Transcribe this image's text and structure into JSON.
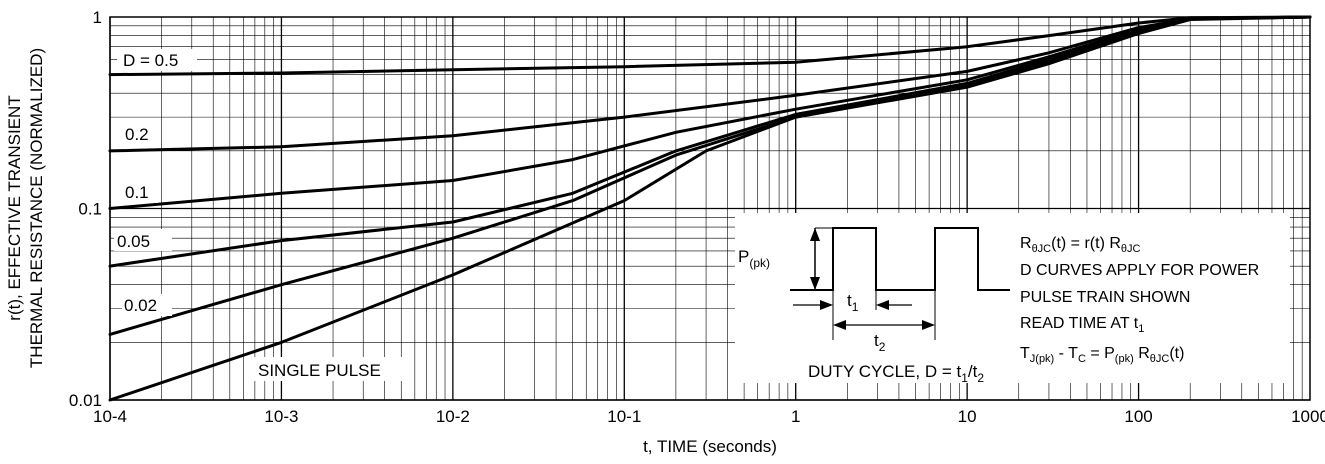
{
  "chart_data": {
    "type": "line",
    "xlabel": "t, TIME (seconds)",
    "ylabel_line1": "r(t), EFFECTIVE TRANSIENT",
    "ylabel_line2": "THERMAL RESISTANCE (NORMALIZED)",
    "x_scale": "log",
    "y_scale": "log",
    "xlim": [
      0.0001,
      1000
    ],
    "ylim": [
      0.01,
      1
    ],
    "grid": true,
    "x_ticks": [
      {
        "value": 0.0001,
        "label": "10-4"
      },
      {
        "value": 0.001,
        "label": "10-3"
      },
      {
        "value": 0.01,
        "label": "10-2"
      },
      {
        "value": 0.1,
        "label": "10-1"
      },
      {
        "value": 1,
        "label": "1"
      },
      {
        "value": 10,
        "label": "10"
      },
      {
        "value": 100,
        "label": "100"
      },
      {
        "value": 1000,
        "label": "1000"
      }
    ],
    "y_ticks": [
      {
        "value": 1,
        "label": "1"
      },
      {
        "value": 0.1,
        "label": "0.1"
      },
      {
        "value": 0.01,
        "label": "0.01"
      }
    ],
    "series": [
      {
        "name": "D = 0.5",
        "x": [
          0.0001,
          0.001,
          0.01,
          0.1,
          1,
          10,
          30,
          100,
          200,
          1000
        ],
        "y": [
          0.5,
          0.51,
          0.53,
          0.55,
          0.58,
          0.7,
          0.8,
          0.93,
          0.99,
          1.0
        ]
      },
      {
        "name": "0.2",
        "x": [
          0.0001,
          0.001,
          0.01,
          0.1,
          1,
          10,
          30,
          100,
          200,
          1000
        ],
        "y": [
          0.2,
          0.21,
          0.24,
          0.3,
          0.39,
          0.52,
          0.65,
          0.88,
          0.98,
          1.0
        ]
      },
      {
        "name": "0.1",
        "x": [
          0.0001,
          0.001,
          0.01,
          0.05,
          0.2,
          1,
          10,
          30,
          100,
          200,
          1000
        ],
        "y": [
          0.1,
          0.12,
          0.14,
          0.18,
          0.25,
          0.33,
          0.47,
          0.62,
          0.86,
          0.98,
          1.0
        ]
      },
      {
        "name": "0.05",
        "x": [
          0.0001,
          0.001,
          0.01,
          0.05,
          0.2,
          1,
          10,
          30,
          100,
          200,
          1000
        ],
        "y": [
          0.05,
          0.068,
          0.085,
          0.12,
          0.2,
          0.31,
          0.45,
          0.6,
          0.85,
          0.98,
          1.0
        ]
      },
      {
        "name": "0.02",
        "x": [
          0.0001,
          0.001,
          0.01,
          0.05,
          0.2,
          1,
          10,
          30,
          100,
          200,
          1000
        ],
        "y": [
          0.022,
          0.04,
          0.07,
          0.11,
          0.19,
          0.3,
          0.44,
          0.59,
          0.84,
          0.98,
          1.0
        ]
      },
      {
        "name": "SINGLE PULSE",
        "x": [
          0.0001,
          0.001,
          0.01,
          0.1,
          0.3,
          1,
          10,
          30,
          100,
          200,
          1000
        ],
        "y": [
          0.01,
          0.02,
          0.045,
          0.11,
          0.2,
          0.3,
          0.43,
          0.57,
          0.82,
          0.97,
          1.0
        ]
      }
    ],
    "curve_labels": {
      "d05": "D = 0.5",
      "d02": "0.2",
      "d01": "0.1",
      "d005": "0.05",
      "d002": "0.02",
      "single": "SINGLE PULSE"
    },
    "inset": {
      "p_label": "P",
      "p_sub": "(pk)",
      "t1_label": "t",
      "t1_sub": "1",
      "t2_label": "t",
      "t2_sub": "2",
      "duty_cycle": "DUTY CYCLE, D = t",
      "duty_sub1": "1",
      "duty_slash": "/t",
      "duty_sub2": "2",
      "line1_a": "R",
      "line1_a_sub": "θJC",
      "line1_b": "(t) = r(t) R",
      "line1_b_sub": "θJC",
      "line2": "D CURVES APPLY FOR POWER",
      "line3": "PULSE TRAIN SHOWN",
      "line4_a": "READ TIME AT t",
      "line4_sub": "1",
      "line5_a": "T",
      "line5_a_sub": "J(pk)",
      "line5_b": " - T",
      "line5_b_sub": "C",
      "line5_c": " = P",
      "line5_c_sub": "(pk)",
      "line5_d": " R",
      "line5_d_sub": "θJC",
      "line5_e": "(t)"
    }
  }
}
